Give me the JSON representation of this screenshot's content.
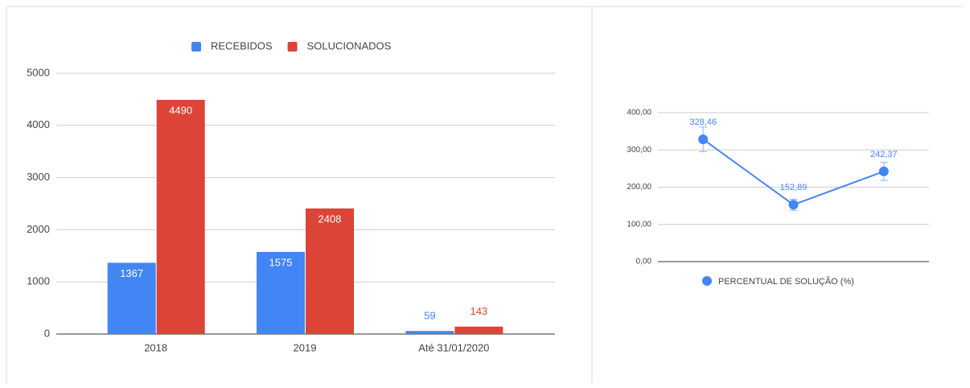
{
  "chart_data": [
    {
      "type": "bar",
      "categories": [
        "2018",
        "2019",
        "Até 31/01/2020"
      ],
      "series": [
        {
          "name": "RECEBIDOS",
          "color": "#4285f4",
          "values": [
            1367,
            1575,
            59
          ]
        },
        {
          "name": "SOLUCIONADOS",
          "color": "#db4437",
          "values": [
            4490,
            2408,
            143
          ]
        }
      ],
      "ylim": [
        0,
        5000
      ],
      "yticks": [
        0,
        1000,
        2000,
        3000,
        4000,
        5000
      ],
      "grid": true,
      "legend": "top"
    },
    {
      "type": "line",
      "series": [
        {
          "name": "PERCENTUAL DE SOLUÇÃO (%)",
          "color": "#4285f4",
          "values": [
            328.46,
            152.89,
            242.37
          ],
          "value_labels": [
            "328,46",
            "152,89",
            "242,37"
          ],
          "errors": [
            33,
            15,
            24
          ]
        }
      ],
      "ylim": [
        0,
        400
      ],
      "yticks": [
        {
          "value": 0,
          "label": "0,00"
        },
        {
          "value": 100,
          "label": "100,00"
        },
        {
          "value": 200,
          "label": "200,00"
        },
        {
          "value": 300,
          "label": "300,00"
        },
        {
          "value": 400,
          "label": "400,00"
        }
      ],
      "grid": true,
      "legend": "bottom"
    }
  ]
}
